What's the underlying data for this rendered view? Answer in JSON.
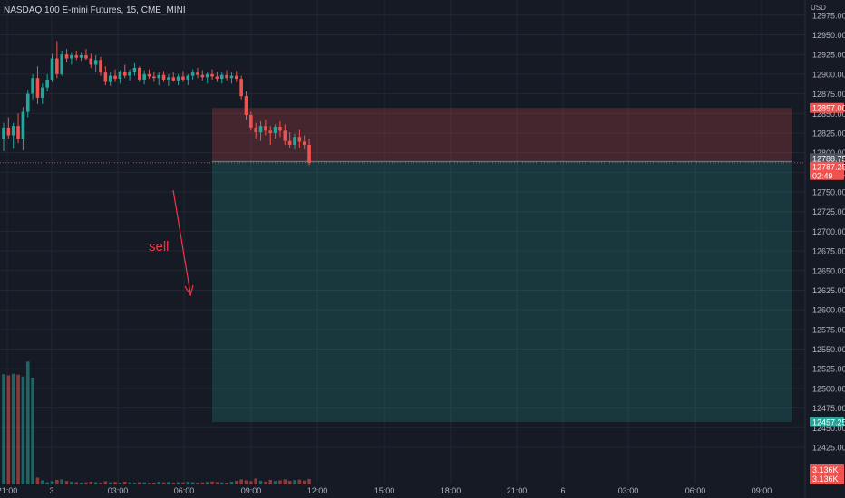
{
  "header": {
    "title": "NASDAQ 100 E-mini Futures, 15, CME_MINI",
    "currency": "USD"
  },
  "colors": {
    "background": "#161a25",
    "grid": "#232733",
    "up": "#26a69a",
    "down": "#ef5350",
    "stop_zone": "#ef5350",
    "target_zone": "#26a69a",
    "axis_text": "#b2b5be",
    "annotation": "#f23645"
  },
  "chart_data": {
    "type": "candlestick",
    "symbol": "NASDAQ 100 E-mini Futures",
    "interval": "15",
    "exchange": "CME_MINI",
    "y_axis": {
      "ylim": [
        12408,
        12984
      ],
      "ticks": [
        12975,
        12950,
        12925,
        12900,
        12875,
        12850,
        12825,
        12800,
        12775,
        12750,
        12725,
        12700,
        12675,
        12650,
        12625,
        12600,
        12575,
        12550,
        12525,
        12500,
        12475,
        12450,
        12425
      ]
    },
    "x_axis": {
      "ticks": [
        "21:00",
        "3",
        "03:00",
        "06:00",
        "09:00",
        "12:00",
        "15:00",
        "18:00",
        "21:00",
        "6",
        "03:00",
        "06:00",
        "09:00"
      ]
    },
    "candles": [
      {
        "o": 12818,
        "h": 12838,
        "l": 12802,
        "c": 12832
      },
      {
        "o": 12832,
        "h": 12845,
        "l": 12818,
        "c": 12822
      },
      {
        "o": 12822,
        "h": 12838,
        "l": 12805,
        "c": 12834
      },
      {
        "o": 12834,
        "h": 12850,
        "l": 12812,
        "c": 12818
      },
      {
        "o": 12818,
        "h": 12858,
        "l": 12803,
        "c": 12852
      },
      {
        "o": 12852,
        "h": 12880,
        "l": 12845,
        "c": 12875
      },
      {
        "o": 12875,
        "h": 12900,
        "l": 12868,
        "c": 12895
      },
      {
        "o": 12895,
        "h": 12910,
        "l": 12862,
        "c": 12870
      },
      {
        "o": 12870,
        "h": 12888,
        "l": 12862,
        "c": 12883
      },
      {
        "o": 12883,
        "h": 12900,
        "l": 12878,
        "c": 12893
      },
      {
        "o": 12893,
        "h": 12926,
        "l": 12890,
        "c": 12920
      },
      {
        "o": 12920,
        "h": 12942,
        "l": 12895,
        "c": 12900
      },
      {
        "o": 12900,
        "h": 12930,
        "l": 12898,
        "c": 12925
      },
      {
        "o": 12925,
        "h": 12932,
        "l": 12915,
        "c": 12920
      },
      {
        "o": 12920,
        "h": 12928,
        "l": 12912,
        "c": 12924
      },
      {
        "o": 12924,
        "h": 12930,
        "l": 12918,
        "c": 12921
      },
      {
        "o": 12921,
        "h": 12928,
        "l": 12917,
        "c": 12924
      },
      {
        "o": 12924,
        "h": 12932,
        "l": 12918,
        "c": 12920
      },
      {
        "o": 12920,
        "h": 12926,
        "l": 12908,
        "c": 12912
      },
      {
        "o": 12912,
        "h": 12924,
        "l": 12902,
        "c": 12918
      },
      {
        "o": 12918,
        "h": 12922,
        "l": 12898,
        "c": 12902
      },
      {
        "o": 12902,
        "h": 12910,
        "l": 12886,
        "c": 12890
      },
      {
        "o": 12890,
        "h": 12902,
        "l": 12885,
        "c": 12898
      },
      {
        "o": 12898,
        "h": 12906,
        "l": 12890,
        "c": 12894
      },
      {
        "o": 12894,
        "h": 12905,
        "l": 12888,
        "c": 12903
      },
      {
        "o": 12903,
        "h": 12912,
        "l": 12895,
        "c": 12898
      },
      {
        "o": 12898,
        "h": 12906,
        "l": 12892,
        "c": 12903
      },
      {
        "o": 12903,
        "h": 12914,
        "l": 12898,
        "c": 12908
      },
      {
        "o": 12908,
        "h": 12910,
        "l": 12890,
        "c": 12893
      },
      {
        "o": 12893,
        "h": 12905,
        "l": 12887,
        "c": 12900
      },
      {
        "o": 12900,
        "h": 12906,
        "l": 12894,
        "c": 12897
      },
      {
        "o": 12897,
        "h": 12903,
        "l": 12890,
        "c": 12895
      },
      {
        "o": 12895,
        "h": 12902,
        "l": 12886,
        "c": 12899
      },
      {
        "o": 12899,
        "h": 12904,
        "l": 12890,
        "c": 12893
      },
      {
        "o": 12893,
        "h": 12900,
        "l": 12885,
        "c": 12896
      },
      {
        "o": 12896,
        "h": 12902,
        "l": 12890,
        "c": 12892
      },
      {
        "o": 12892,
        "h": 12900,
        "l": 12886,
        "c": 12897
      },
      {
        "o": 12897,
        "h": 12904,
        "l": 12890,
        "c": 12893
      },
      {
        "o": 12893,
        "h": 12900,
        "l": 12886,
        "c": 12898
      },
      {
        "o": 12898,
        "h": 12906,
        "l": 12893,
        "c": 12902
      },
      {
        "o": 12902,
        "h": 12908,
        "l": 12895,
        "c": 12899
      },
      {
        "o": 12899,
        "h": 12905,
        "l": 12892,
        "c": 12896
      },
      {
        "o": 12896,
        "h": 12902,
        "l": 12888,
        "c": 12900
      },
      {
        "o": 12900,
        "h": 12906,
        "l": 12893,
        "c": 12897
      },
      {
        "o": 12897,
        "h": 12903,
        "l": 12890,
        "c": 12894
      },
      {
        "o": 12894,
        "h": 12902,
        "l": 12888,
        "c": 12899
      },
      {
        "o": 12899,
        "h": 12905,
        "l": 12892,
        "c": 12895
      },
      {
        "o": 12895,
        "h": 12902,
        "l": 12888,
        "c": 12898
      },
      {
        "o": 12898,
        "h": 12904,
        "l": 12890,
        "c": 12894
      },
      {
        "o": 12894,
        "h": 12898,
        "l": 12868,
        "c": 12872
      },
      {
        "o": 12872,
        "h": 12878,
        "l": 12842,
        "c": 12848
      },
      {
        "o": 12848,
        "h": 12852,
        "l": 12828,
        "c": 12832
      },
      {
        "o": 12832,
        "h": 12838,
        "l": 12818,
        "c": 12826
      },
      {
        "o": 12826,
        "h": 12840,
        "l": 12815,
        "c": 12834
      },
      {
        "o": 12834,
        "h": 12842,
        "l": 12822,
        "c": 12828
      },
      {
        "o": 12828,
        "h": 12834,
        "l": 12810,
        "c": 12825
      },
      {
        "o": 12825,
        "h": 12836,
        "l": 12818,
        "c": 12833
      },
      {
        "o": 12833,
        "h": 12840,
        "l": 12820,
        "c": 12828
      },
      {
        "o": 12828,
        "h": 12836,
        "l": 12810,
        "c": 12815
      },
      {
        "o": 12815,
        "h": 12826,
        "l": 12806,
        "c": 12810
      },
      {
        "o": 12810,
        "h": 12824,
        "l": 12804,
        "c": 12820
      },
      {
        "o": 12820,
        "h": 12829,
        "l": 12806,
        "c": 12814
      },
      {
        "o": 12814,
        "h": 12822,
        "l": 12804,
        "c": 12810
      },
      {
        "o": 12810,
        "h": 12818,
        "l": 12784,
        "c": 12787
      }
    ],
    "volume": [
      480,
      475,
      482,
      478,
      470,
      535,
      465,
      30,
      18,
      10,
      14,
      20,
      22,
      15,
      12,
      10,
      8,
      9,
      12,
      10,
      8,
      14,
      9,
      11,
      8,
      12,
      9,
      8,
      10,
      9,
      7,
      8,
      12,
      9,
      11,
      8,
      10,
      9,
      12,
      10,
      8,
      9,
      11,
      13,
      10,
      9,
      8,
      12,
      16,
      22,
      18,
      14,
      26,
      16,
      12,
      20,
      15,
      18,
      22,
      16,
      19,
      21,
      17,
      24
    ],
    "volume_scale_max": 540,
    "position": {
      "type": "short",
      "entry": 12788.75,
      "stop": 12857.0,
      "target": 12457.25
    },
    "last_price": 12787.25,
    "countdown": "02:49",
    "volume_labels": [
      "3.136K",
      "3.136K"
    ],
    "annotation": "sell"
  }
}
